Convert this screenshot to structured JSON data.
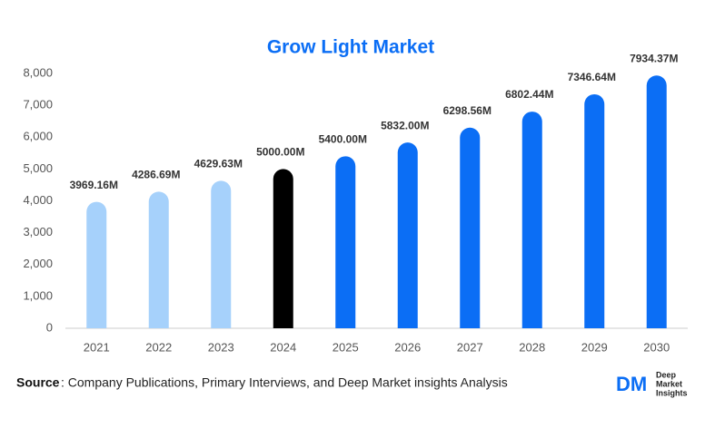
{
  "chart_data": {
    "type": "bar",
    "title": "Grow Light Market",
    "categories": [
      "2021",
      "2022",
      "2023",
      "2024",
      "2025",
      "2026",
      "2027",
      "2028",
      "2029",
      "2030"
    ],
    "values": [
      3969.16,
      4286.69,
      4629.63,
      5000.0,
      5400.0,
      5832.0,
      6298.56,
      6802.44,
      7346.64,
      7934.37
    ],
    "value_labels": [
      "3969.16M",
      "4286.69M",
      "4629.63M",
      "5000.00M",
      "5400.00M",
      "5832.00M",
      "6298.56M",
      "6802.44M",
      "7346.64M",
      "7934.37M"
    ],
    "colors": [
      "#a6d1fb",
      "#a6d1fb",
      "#a6d1fb",
      "#000000",
      "#0b6ef5",
      "#0b6ef5",
      "#0b6ef5",
      "#0b6ef5",
      "#0b6ef5",
      "#0b6ef5"
    ],
    "ylim": [
      0,
      8000
    ],
    "yticks": [
      0,
      {
        "value": 1000,
        "label": "1,000"
      },
      {
        "value": 2000,
        "label": "2,000"
      },
      {
        "value": 3000,
        "label": "3,000"
      },
      {
        "value": 4000,
        "label": "4,000"
      },
      {
        "value": 5000,
        "label": "5,000"
      },
      {
        "value": 6000,
        "label": "6,000"
      },
      {
        "value": 7000,
        "label": "7,000"
      },
      {
        "value": 8000,
        "label": "8,000"
      }
    ],
    "grid": false
  },
  "footer": {
    "source_label": "Source",
    "source_text": ": Company Publications, Primary Interviews, and Deep Market insights Analysis",
    "logo_mark": "DM",
    "logo_lines": [
      "Deep",
      "Market",
      "Insights"
    ]
  }
}
